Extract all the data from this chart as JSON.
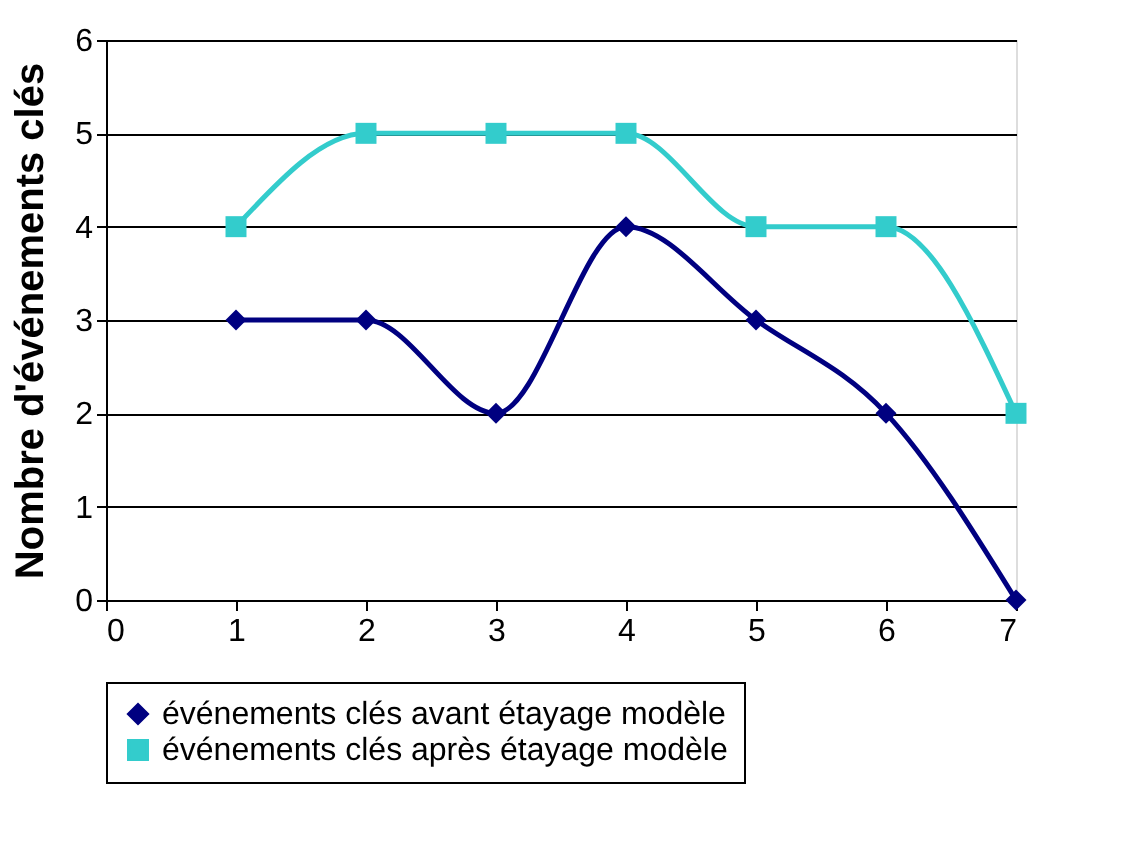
{
  "chart_data": {
    "type": "line",
    "ylabel": "Nombre d'événements clés",
    "x": [
      1,
      2,
      3,
      4,
      5,
      6,
      7
    ],
    "series": [
      {
        "name": "événements clés avant étayage modèle",
        "color": "#000080",
        "marker": "diamond",
        "values": [
          3,
          3,
          2,
          4,
          3,
          2,
          0
        ]
      },
      {
        "name": "événements clés après étayage modèle",
        "color": "#33cccc",
        "marker": "square",
        "values": [
          4,
          5,
          5,
          5,
          4,
          4,
          2
        ]
      }
    ],
    "xlim": [
      0,
      7
    ],
    "xticks": [
      0,
      1,
      2,
      3,
      4,
      5,
      6,
      7
    ],
    "ylim": [
      0,
      6
    ],
    "yticks": [
      0,
      1,
      2,
      3,
      4,
      5,
      6
    ],
    "grid": "y",
    "legend": "bottom",
    "line_style": "solid"
  }
}
